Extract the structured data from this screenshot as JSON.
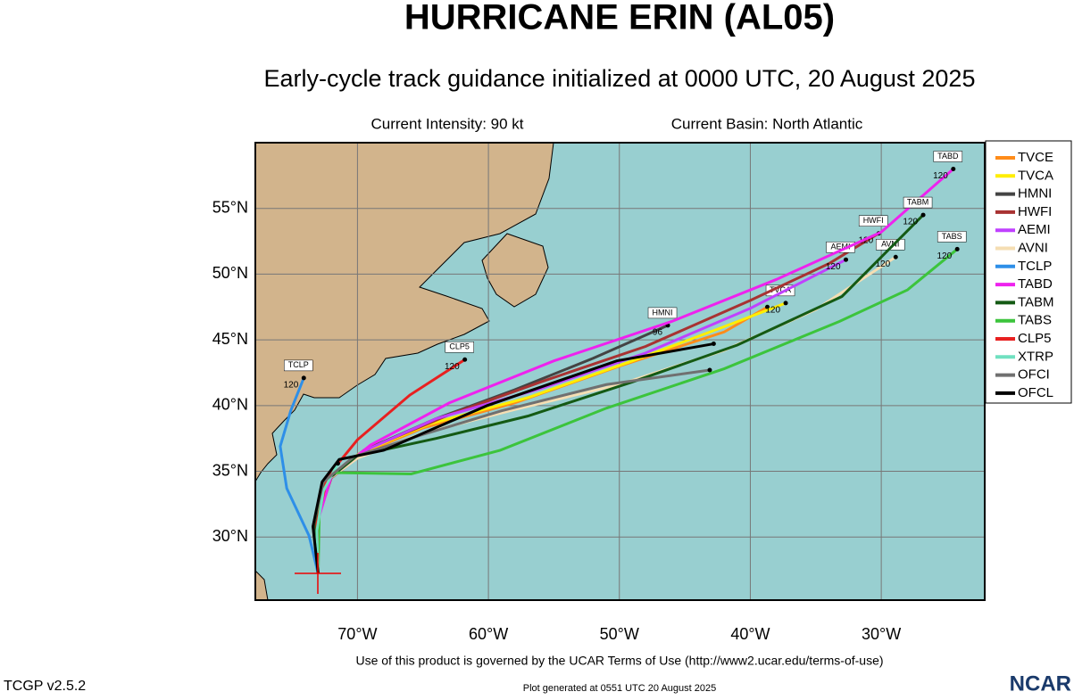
{
  "header": {
    "title": "HURRICANE ERIN (AL05)",
    "subtitle": "Early-cycle track guidance initialized at 0000 UTC, 20 August 2025",
    "intensity": "Current Intensity: 90 kt",
    "basin": "Current Basin: North Atlantic"
  },
  "map": {
    "xlim": [
      -77.8,
      -22.1
    ],
    "ylim": [
      25.2,
      60.0
    ],
    "xticks": [
      {
        "value": -70,
        "label": "70°W"
      },
      {
        "value": -60,
        "label": "60°W"
      },
      {
        "value": -50,
        "label": "50°W"
      },
      {
        "value": -40,
        "label": "40°W"
      },
      {
        "value": -30,
        "label": "30°W"
      }
    ],
    "yticks": [
      {
        "value": 30,
        "label": "30°N"
      },
      {
        "value": 35,
        "label": "35°N"
      },
      {
        "value": 40,
        "label": "40°N"
      },
      {
        "value": 45,
        "label": "45°N"
      },
      {
        "value": 50,
        "label": "50°N"
      },
      {
        "value": 55,
        "label": "55°N"
      }
    ],
    "tracks": [
      {
        "name": "TVCE",
        "color": "#ff8c1a",
        "end_hour": null,
        "lon": [
          -73,
          -73.3,
          -72.5,
          -70,
          -65,
          -58,
          -50,
          -42,
          -38.7
        ],
        "lat": [
          27.2,
          30.8,
          34.2,
          36.2,
          38.3,
          40.2,
          43.0,
          45.6,
          47.5
        ]
      },
      {
        "name": "TVCA",
        "color": "#ffee00",
        "end_hour": 120,
        "lon": [
          -73,
          -73.3,
          -72.4,
          -69.8,
          -64.5,
          -57,
          -49,
          -42,
          -37.3
        ],
        "lat": [
          27.2,
          30.8,
          34.3,
          36.4,
          38.6,
          40.6,
          43.4,
          46.0,
          47.8
        ]
      },
      {
        "name": "HMNI",
        "color": "#444444",
        "end_hour": 96,
        "lon": [
          -73,
          -73.2,
          -72.2,
          -69.5,
          -64,
          -58,
          -52,
          -46.3
        ],
        "lat": [
          27.2,
          30.9,
          34.4,
          36.6,
          39.0,
          41.2,
          43.6,
          46.1
        ]
      },
      {
        "name": "HWFI",
        "color": "#a83232",
        "end_hour": 120,
        "lon": [
          -73,
          -73.2,
          -72,
          -69,
          -63,
          -56,
          -48,
          -40,
          -34,
          -30.2
        ],
        "lat": [
          27.2,
          30.9,
          34.5,
          36.8,
          39.3,
          41.8,
          44.5,
          48.0,
          50.8,
          53.1
        ]
      },
      {
        "name": "AEMI",
        "color": "#c040ff",
        "end_hour": 120,
        "lon": [
          -73,
          -73.3,
          -72.3,
          -69.6,
          -64,
          -56,
          -48,
          -40,
          -32.7
        ],
        "lat": [
          27.2,
          30.8,
          34.3,
          36.5,
          39.0,
          41.3,
          44.0,
          47.4,
          51.1
        ]
      },
      {
        "name": "AVNI",
        "color": "#f5deb3",
        "end_hour": 120,
        "lon": [
          -73,
          -73.4,
          -72.6,
          -70,
          -65,
          -58,
          -50,
          -42,
          -35,
          -28.9
        ],
        "lat": [
          27.2,
          30.7,
          34.1,
          36.0,
          37.9,
          39.7,
          41.6,
          44.2,
          47.3,
          51.3
        ]
      },
      {
        "name": "TCLP",
        "color": "#2e8fe8",
        "end_hour": 120,
        "lon": [
          -73,
          -73.7,
          -75.4,
          -75.9,
          -75.1,
          -74.1
        ],
        "lat": [
          27.2,
          30.1,
          33.7,
          36.9,
          39.6,
          42.1
        ]
      },
      {
        "name": "TABD",
        "color": "#ee22ee",
        "end_hour": 120,
        "lon": [
          -73,
          -73.1,
          -72,
          -69,
          -63,
          -55,
          -46,
          -38,
          -30,
          -24.5
        ],
        "lat": [
          27.2,
          31,
          34.6,
          37.0,
          40.2,
          43.4,
          46.4,
          49.6,
          53.2,
          58.0
        ]
      },
      {
        "name": "TABM",
        "color": "#145a14",
        "end_hour": 120,
        "lon": [
          -73,
          -73.3,
          -72.5,
          -70,
          -64,
          -57,
          -49,
          -41,
          -33,
          -26.8
        ],
        "lat": [
          27.2,
          30.8,
          34.2,
          36.2,
          37.5,
          39.2,
          41.8,
          44.6,
          48.3,
          54.5
        ]
      },
      {
        "name": "TABS",
        "color": "#3cc43c",
        "end_hour": 120,
        "lon": [
          -73,
          -72.9,
          -72,
          -65.9,
          -59.1,
          -51,
          -42,
          -33.2,
          -28,
          -24.2
        ],
        "lat": [
          27.2,
          32.8,
          34.9,
          34.8,
          36.6,
          39.8,
          42.8,
          46.4,
          48.8,
          51.9
        ]
      },
      {
        "name": "CLP5",
        "color": "#e82020",
        "end_hour": 120,
        "lon": [
          -73,
          -73.1,
          -72.3,
          -70,
          -66,
          -61.8
        ],
        "lat": [
          27.2,
          31,
          34.6,
          37.4,
          40.8,
          43.5
        ]
      },
      {
        "name": "XTRP",
        "color": "#70e0c0",
        "end_hour": null,
        "lon": [
          -73,
          -73.1,
          -72.6,
          -71.5
        ],
        "lat": [
          27.2,
          30.5,
          33.5,
          35.6
        ]
      },
      {
        "name": "OFCI",
        "color": "#707070",
        "end_hour": null,
        "lon": [
          -73,
          -73.4,
          -72.6,
          -70.3,
          -65,
          -59,
          -51,
          -43.1
        ],
        "lat": [
          27.2,
          30.8,
          34.2,
          36.1,
          37.8,
          39.6,
          41.6,
          42.7
        ]
      },
      {
        "name": "OFCL",
        "color": "#000000",
        "end_hour": null,
        "lon": [
          -73,
          -73.4,
          -72.7,
          -71.4,
          -68,
          -60.1,
          -50.2,
          -42.8
        ],
        "lat": [
          27.2,
          30.8,
          34.2,
          35.9,
          36.6,
          40.0,
          43.4,
          44.7
        ]
      }
    ]
  },
  "footer": {
    "terms": "Use of this product is governed by the UCAR Terms of Use (http://www2.ucar.edu/terms-of-use)",
    "version": "TCGP v2.5.2",
    "generated": "Plot generated at 0551 UTC   20 August 2025",
    "logo": "NCAR"
  }
}
